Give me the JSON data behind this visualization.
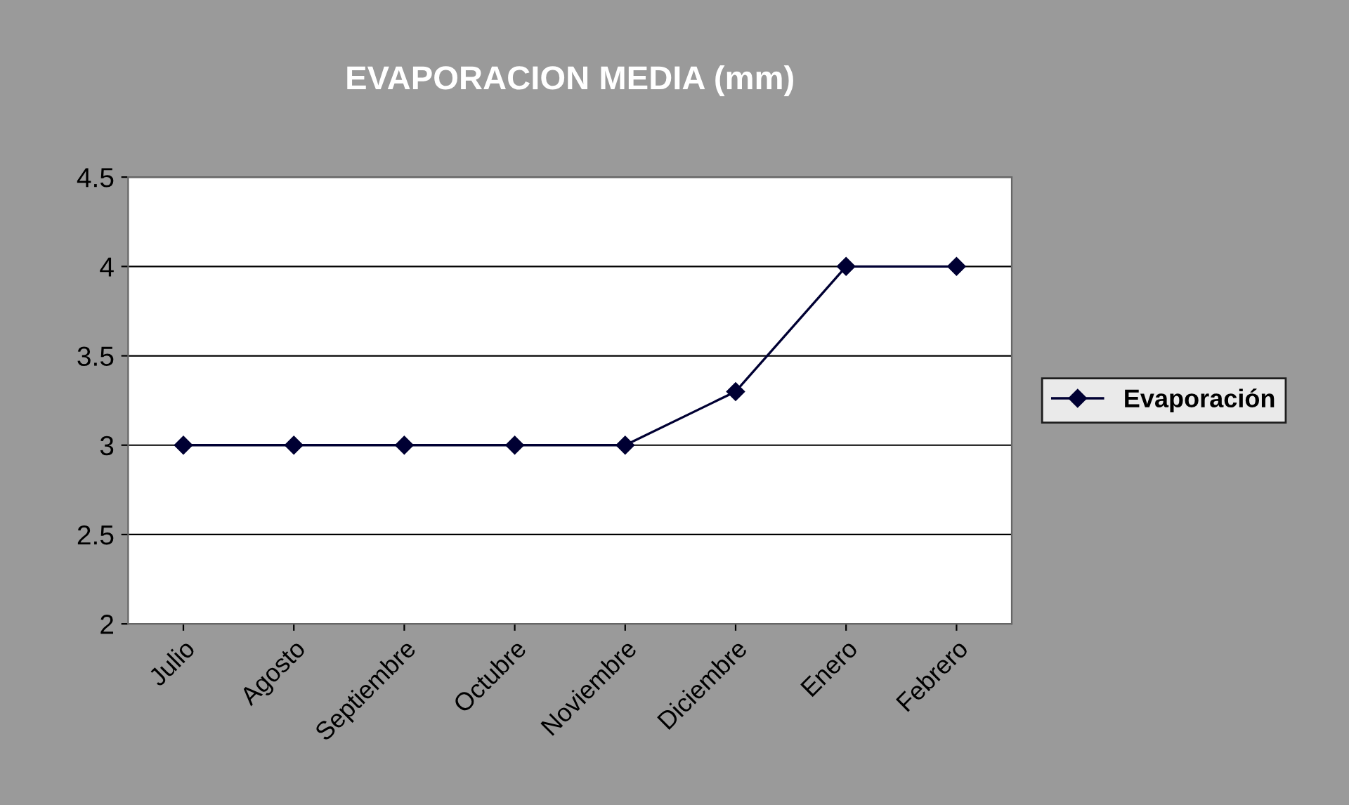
{
  "chart_data": {
    "type": "line",
    "title": "EVAPORACION MEDIA (mm)",
    "categories": [
      "Julio",
      "Agosto",
      "Septiembre",
      "Octubre",
      "Noviembre",
      "Diciembre",
      "Enero",
      "Febrero"
    ],
    "series": [
      {
        "name": "Evaporación",
        "color": "#000033",
        "values": [
          3,
          3,
          3,
          3,
          3,
          3.3,
          4,
          4
        ]
      }
    ],
    "ylim": [
      2,
      4.5
    ],
    "yticks": [
      2,
      2.5,
      3,
      3.5,
      4,
      4.5
    ],
    "grid": "y",
    "legend": "right",
    "marker": "diamond",
    "line_style": "solid"
  }
}
